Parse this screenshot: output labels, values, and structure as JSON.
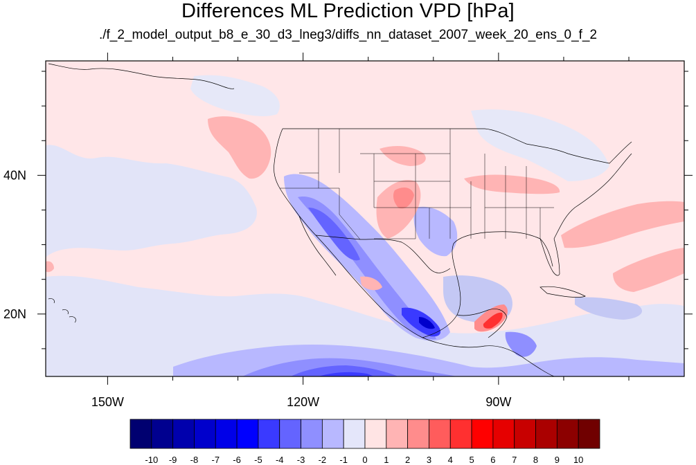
{
  "title": "Differences ML Prediction VPD [hPa]",
  "subtitle": "./f_2_model_output_b8_e_30_d3_lneg3/diffs_nn_dataset_2007_week_20_ens_0_f_2",
  "map": {
    "lon_range": [
      -159.5,
      -61.5
    ],
    "lat_range": [
      11,
      56.5
    ],
    "lon_ticks": [
      {
        "value": -150,
        "label": "150W"
      },
      {
        "value": -120,
        "label": "120W"
      },
      {
        "value": -90,
        "label": "90W"
      }
    ],
    "lat_ticks": [
      {
        "value": 40,
        "label": "40N"
      },
      {
        "value": 20,
        "label": "20N"
      }
    ],
    "minor_lon_ticks": [
      -140,
      -130,
      -110,
      -100,
      -80,
      -70
    ],
    "minor_lat_ticks": [
      55,
      50,
      45,
      35,
      30,
      25,
      15
    ]
  },
  "colorbar": {
    "labels": [
      "-10",
      "-9",
      "-8",
      "-7",
      "-6",
      "-5",
      "-4",
      "-3",
      "-2",
      "-1",
      "0",
      "1",
      "2",
      "3",
      "4",
      "5",
      "6",
      "7",
      "8",
      "9",
      "10"
    ],
    "colors": [
      "#000070",
      "#00008f",
      "#0000ad",
      "#0000cc",
      "#0000e8",
      "#0000ff",
      "#3a3aff",
      "#6464ff",
      "#8f8fff",
      "#b8b8ff",
      "#e4e6fa",
      "#ffe4e4",
      "#ffb4b4",
      "#ff8c8c",
      "#ff5c5c",
      "#ff3030",
      "#ff0000",
      "#e60000",
      "#c80000",
      "#aa0000",
      "#8c0000",
      "#700000"
    ]
  }
}
